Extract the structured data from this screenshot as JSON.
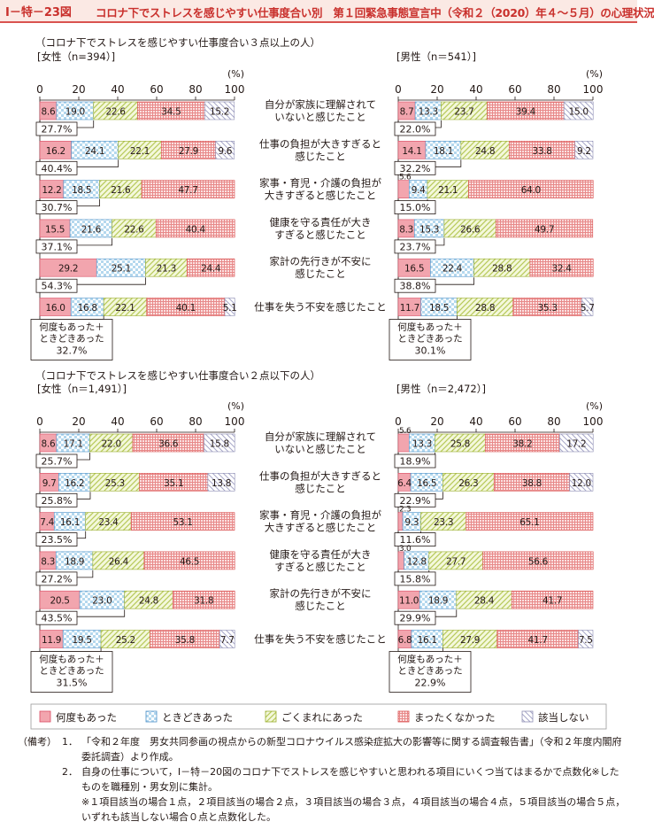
{
  "figure_number": "Ⅰ－特－23図",
  "figure_title": "コロナ下でストレスを感じやすい仕事度合い別　第１回緊急事態宣言中（令和２（2020）年４～５月）の心理状況",
  "colors": {
    "accent": "#c9302c",
    "header_bg": "#fbe9e4",
    "s1": "#f2a5ae",
    "s2": "#b4d8ee",
    "s3": "#d8e49a",
    "s4": "#f5aeae",
    "s5": "#e2e2ef"
  },
  "legend": [
    "何度もあった",
    "ときどきあった",
    "ごくまれにあった",
    "まったくなかった",
    "該当しない"
  ],
  "items": [
    "自分が家族に理解されて\nいないと感じたこと",
    "仕事の負担が大きすぎると\n感じたこと",
    "家事・育児・介護の負担が\n大きすぎると感じたこと",
    "健康を守る責任が大き\nすぎると感じたこと",
    "家計の先行きが不安に\n感じたこと",
    "仕事を失う不安を感じたこと"
  ],
  "sections": [
    {
      "title": "（コロナ下でストレスを感じやすい仕事度合い３点以上の人）"
    },
    {
      "title": "（コロナ下でストレスを感じやすい仕事度合い２点以下の人）"
    }
  ],
  "sum_label": "何度もあった＋\nときどきあった",
  "chart_data": [
    {
      "type": "bar",
      "stacked": true,
      "orientation": "horizontal",
      "panel": "女性（n=394）",
      "group_label": "[女性（n=394）]",
      "xlim": [
        0,
        100
      ],
      "xlabel": "(%)",
      "ticks": [
        "0",
        "20",
        "40",
        "60",
        "80",
        "100"
      ],
      "series": [
        {
          "name": "何度もあった",
          "values": [
            8.6,
            16.2,
            12.2,
            15.5,
            29.2,
            16.0
          ]
        },
        {
          "name": "ときどきあった",
          "values": [
            19.0,
            24.1,
            18.5,
            21.6,
            25.1,
            16.8
          ]
        },
        {
          "name": "ごくまれにあった",
          "values": [
            22.6,
            22.1,
            21.6,
            22.6,
            21.3,
            22.1
          ]
        },
        {
          "name": "まったくなかった",
          "values": [
            34.5,
            27.9,
            47.7,
            40.4,
            24.4,
            40.1
          ]
        },
        {
          "name": "該当しない",
          "values": [
            15.2,
            9.6,
            0,
            0,
            0,
            5.1
          ]
        }
      ],
      "labels": [
        [
          "8.6",
          "19.0",
          "22.6",
          "34.5",
          "15.2"
        ],
        [
          "16.2",
          "24.1",
          "22.1",
          "27.9",
          "9.6"
        ],
        [
          "12.2",
          "18.5",
          "21.6",
          "47.7",
          ""
        ],
        [
          "15.5",
          "21.6",
          "22.6",
          "40.4",
          ""
        ],
        [
          "29.2",
          "25.1",
          "21.3",
          "24.4",
          ""
        ],
        [
          "16.0",
          "16.8",
          "22.1",
          "40.1",
          "5.1"
        ]
      ],
      "sums": [
        "27.7%",
        "40.4%",
        "30.7%",
        "37.1%",
        "54.3%"
      ],
      "last_sum": "32.7%"
    },
    {
      "type": "bar",
      "stacked": true,
      "orientation": "horizontal",
      "panel": "男性（n=541）",
      "group_label": "[男性（n＝541）]",
      "xlim": [
        0,
        100
      ],
      "xlabel": "(%)",
      "ticks": [
        "0",
        "20",
        "40",
        "60",
        "80",
        "100"
      ],
      "series": [
        {
          "name": "何度もあった",
          "values": [
            8.7,
            14.1,
            5.6,
            8.3,
            16.5,
            11.7
          ]
        },
        {
          "name": "ときどきあった",
          "values": [
            13.3,
            18.1,
            9.4,
            15.3,
            22.4,
            18.5
          ]
        },
        {
          "name": "ごくまれにあった",
          "values": [
            23.7,
            24.8,
            21.1,
            26.6,
            28.8,
            28.8
          ]
        },
        {
          "name": "まったくなかった",
          "values": [
            39.4,
            33.8,
            64.0,
            49.7,
            32.4,
            35.3
          ]
        },
        {
          "name": "該当しない",
          "values": [
            15.0,
            9.2,
            0,
            0,
            0,
            5.7
          ]
        }
      ],
      "labels": [
        [
          "8.7",
          "13.3",
          "23.7",
          "39.4",
          "15.0"
        ],
        [
          "14.1",
          "18.1",
          "24.8",
          "33.8",
          "9.2"
        ],
        [
          "",
          "9.4",
          "21.1",
          "64.0",
          ""
        ],
        [
          "8.3",
          "15.3",
          "26.6",
          "49.7",
          ""
        ],
        [
          "16.5",
          "22.4",
          "28.8",
          "32.4",
          ""
        ],
        [
          "11.7",
          "18.5",
          "28.8",
          "35.3",
          "5.7"
        ]
      ],
      "above_labels": [
        "",
        "",
        "5.6",
        "",
        "",
        ""
      ],
      "sums": [
        "22.0%",
        "32.2%",
        "15.0%",
        "23.7%",
        "38.8%"
      ],
      "last_sum": "30.1%"
    },
    {
      "type": "bar",
      "stacked": true,
      "orientation": "horizontal",
      "panel": "女性（n=1,491）",
      "group_label": "[女性（n＝1,491）]",
      "xlim": [
        0,
        100
      ],
      "xlabel": "(%)",
      "ticks": [
        "0",
        "20",
        "40",
        "60",
        "80",
        "100"
      ],
      "series": [
        {
          "name": "何度もあった",
          "values": [
            8.6,
            9.7,
            7.4,
            8.3,
            20.5,
            11.9
          ]
        },
        {
          "name": "ときどきあった",
          "values": [
            17.1,
            16.2,
            16.1,
            18.9,
            23.0,
            19.5
          ]
        },
        {
          "name": "ごくまれにあった",
          "values": [
            22.0,
            25.3,
            23.4,
            26.4,
            24.8,
            25.2
          ]
        },
        {
          "name": "まったくなかった",
          "values": [
            36.6,
            35.1,
            53.1,
            46.5,
            31.8,
            35.8
          ]
        },
        {
          "name": "該当しない",
          "values": [
            15.8,
            13.8,
            0,
            0,
            0,
            7.7
          ]
        }
      ],
      "labels": [
        [
          "8.6",
          "17.1",
          "22.0",
          "36.6",
          "15.8"
        ],
        [
          "9.7",
          "16.2",
          "25.3",
          "35.1",
          "13.8"
        ],
        [
          "7.4",
          "16.1",
          "23.4",
          "53.1",
          ""
        ],
        [
          "8.3",
          "18.9",
          "26.4",
          "46.5",
          ""
        ],
        [
          "20.5",
          "23.0",
          "24.8",
          "31.8",
          ""
        ],
        [
          "11.9",
          "19.5",
          "25.2",
          "35.8",
          "7.7"
        ]
      ],
      "sums": [
        "25.7%",
        "25.8%",
        "23.5%",
        "27.2%",
        "43.5%"
      ],
      "last_sum": "31.5%"
    },
    {
      "type": "bar",
      "stacked": true,
      "orientation": "horizontal",
      "panel": "男性（n=2,472）",
      "group_label": "[男性（n＝2,472）]",
      "xlim": [
        0,
        100
      ],
      "xlabel": "(%)",
      "ticks": [
        "0",
        "20",
        "40",
        "60",
        "80",
        "100"
      ],
      "series": [
        {
          "name": "何度もあった",
          "values": [
            5.6,
            6.4,
            2.3,
            3.0,
            11.0,
            6.8
          ]
        },
        {
          "name": "ときどきあった",
          "values": [
            13.3,
            16.5,
            9.3,
            12.8,
            18.9,
            16.1
          ]
        },
        {
          "name": "ごくまれにあった",
          "values": [
            25.8,
            26.3,
            23.3,
            27.7,
            28.4,
            27.9
          ]
        },
        {
          "name": "まったくなかった",
          "values": [
            38.2,
            38.8,
            65.1,
            56.6,
            41.7,
            41.7
          ]
        },
        {
          "name": "該当しない",
          "values": [
            17.2,
            12.0,
            0,
            0,
            0,
            7.5
          ]
        }
      ],
      "labels": [
        [
          "",
          "13.3",
          "25.8",
          "38.2",
          "17.2"
        ],
        [
          "6.4",
          "16.5",
          "26.3",
          "38.8",
          "12.0"
        ],
        [
          "",
          "9.3",
          "23.3",
          "65.1",
          ""
        ],
        [
          "",
          "12.8",
          "27.7",
          "56.6",
          ""
        ],
        [
          "11.0",
          "18.9",
          "28.4",
          "41.7",
          ""
        ],
        [
          "6.8",
          "16.1",
          "27.9",
          "41.7",
          "7.5"
        ]
      ],
      "above_labels": [
        "5.6",
        "",
        "2.3",
        "3.0",
        "",
        ""
      ],
      "sums": [
        "18.9%",
        "22.9%",
        "11.6%",
        "15.8%",
        "29.9%"
      ],
      "last_sum": "22.9%"
    }
  ],
  "notes": {
    "label": "（備考）",
    "items": [
      {
        "num": "1．",
        "text": "「令和２年度　男女共同参画の視点からの新型コロナウイルス感染症拡大の影響等に関する調査報告書」（令和２年度内閣府委託調査）より作成。"
      },
      {
        "num": "2．",
        "text": "自身の仕事について，Ⅰ－特－20図のコロナ下でストレスを感じやすいと思われる項目にいくつ当てはまるかで点数化※したものを職種別・男女別に集計。"
      },
      {
        "num": "",
        "text": "※１項目該当の場合１点，２項目該当の場合２点，３項目該当の場合３点，４項目該当の場合４点，５項目該当の場合５点，いずれも該当しない場合０点と点数化した。"
      }
    ]
  }
}
